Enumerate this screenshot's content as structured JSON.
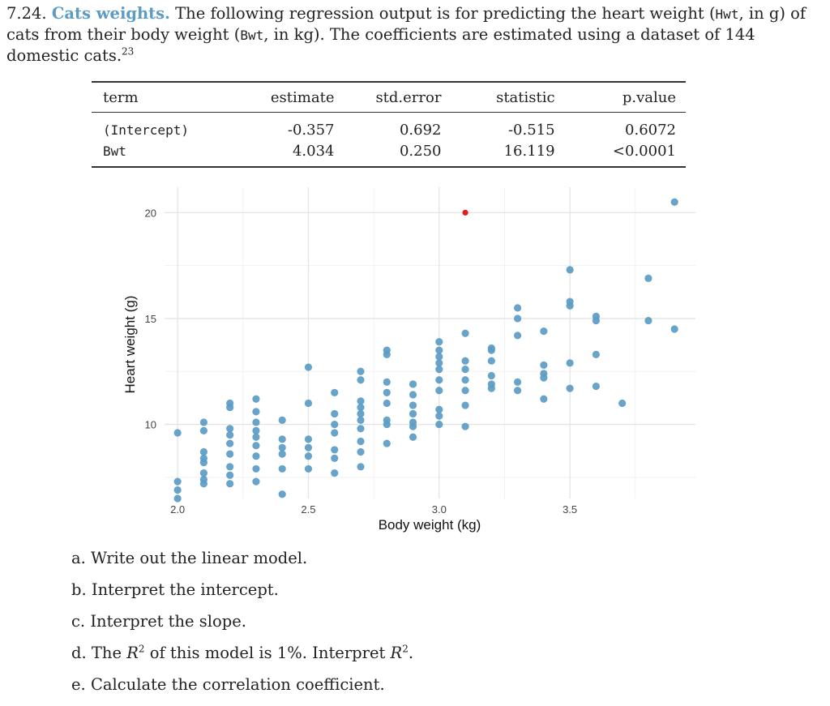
{
  "exercise": {
    "number": "7.24.",
    "title": "Cats weights.",
    "text_1": "The following regression output is for predicting the heart weight (",
    "hwt": "Hwt",
    "text_2": ", in g) of cats from their body weight (",
    "bwt": "Bwt",
    "text_3": ", in kg). The coefficients are estimated using a dataset of 144 domestic cats.",
    "footnote": "23"
  },
  "table": {
    "headers": [
      "term",
      "estimate",
      "std.error",
      "statistic",
      "p.value"
    ],
    "rows": [
      [
        "(Intercept)",
        "-0.357",
        "0.692",
        "-0.515",
        "0.6072"
      ],
      [
        "Bwt",
        "4.034",
        "0.250",
        "16.119",
        "<0.0001"
      ]
    ]
  },
  "chart_data": {
    "type": "scatter",
    "xlabel": "Body weight (kg)",
    "ylabel": "Heart weight (g)",
    "xlim": [
      1.95,
      3.98
    ],
    "ylim": [
      6.5,
      21.2
    ],
    "xticks": [
      "2.0",
      "2.5",
      "3.0",
      "3.5"
    ],
    "yticks": [
      "10",
      "15",
      "20"
    ],
    "grid": true,
    "point_color": "#5b9bc4",
    "highlight_color": "#e02020",
    "highlight": {
      "x": 3.1,
      "y": 20.0
    },
    "points": [
      [
        2.0,
        9.6
      ],
      [
        2.0,
        7.3
      ],
      [
        2.0,
        6.9
      ],
      [
        2.0,
        6.5
      ],
      [
        2.1,
        10.1
      ],
      [
        2.1,
        9.7
      ],
      [
        2.1,
        8.7
      ],
      [
        2.1,
        8.4
      ],
      [
        2.1,
        8.2
      ],
      [
        2.1,
        7.7
      ],
      [
        2.1,
        7.4
      ],
      [
        2.1,
        7.2
      ],
      [
        2.2,
        11.0
      ],
      [
        2.2,
        10.8
      ],
      [
        2.2,
        9.8
      ],
      [
        2.2,
        9.5
      ],
      [
        2.2,
        9.1
      ],
      [
        2.2,
        8.6
      ],
      [
        2.2,
        8.0
      ],
      [
        2.2,
        7.6
      ],
      [
        2.2,
        7.2
      ],
      [
        2.3,
        11.2
      ],
      [
        2.3,
        10.6
      ],
      [
        2.3,
        10.1
      ],
      [
        2.3,
        9.7
      ],
      [
        2.3,
        9.4
      ],
      [
        2.3,
        9.0
      ],
      [
        2.3,
        8.5
      ],
      [
        2.3,
        7.9
      ],
      [
        2.3,
        7.3
      ],
      [
        2.4,
        10.2
      ],
      [
        2.4,
        9.3
      ],
      [
        2.4,
        8.9
      ],
      [
        2.4,
        8.6
      ],
      [
        2.4,
        7.9
      ],
      [
        2.4,
        6.7
      ],
      [
        2.5,
        12.7
      ],
      [
        2.5,
        11.0
      ],
      [
        2.5,
        9.3
      ],
      [
        2.5,
        8.9
      ],
      [
        2.5,
        8.5
      ],
      [
        2.5,
        7.9
      ],
      [
        2.6,
        11.5
      ],
      [
        2.6,
        10.5
      ],
      [
        2.6,
        10.0
      ],
      [
        2.6,
        9.6
      ],
      [
        2.6,
        8.8
      ],
      [
        2.6,
        8.4
      ],
      [
        2.6,
        7.7
      ],
      [
        2.7,
        12.5
      ],
      [
        2.7,
        12.1
      ],
      [
        2.7,
        11.1
      ],
      [
        2.7,
        10.8
      ],
      [
        2.7,
        10.5
      ],
      [
        2.7,
        10.2
      ],
      [
        2.7,
        9.8
      ],
      [
        2.7,
        9.2
      ],
      [
        2.7,
        8.7
      ],
      [
        2.7,
        8.0
      ],
      [
        2.8,
        13.5
      ],
      [
        2.8,
        13.3
      ],
      [
        2.8,
        12.0
      ],
      [
        2.8,
        11.5
      ],
      [
        2.8,
        11.0
      ],
      [
        2.8,
        10.2
      ],
      [
        2.8,
        10.0
      ],
      [
        2.8,
        9.1
      ],
      [
        2.9,
        11.9
      ],
      [
        2.9,
        11.4
      ],
      [
        2.9,
        10.9
      ],
      [
        2.9,
        10.5
      ],
      [
        2.9,
        10.1
      ],
      [
        2.9,
        9.9
      ],
      [
        2.9,
        9.4
      ],
      [
        3.0,
        13.9
      ],
      [
        3.0,
        13.5
      ],
      [
        3.0,
        13.2
      ],
      [
        3.0,
        12.9
      ],
      [
        3.0,
        12.6
      ],
      [
        3.0,
        12.1
      ],
      [
        3.0,
        11.6
      ],
      [
        3.0,
        10.7
      ],
      [
        3.0,
        10.4
      ],
      [
        3.0,
        10.0
      ],
      [
        3.1,
        14.3
      ],
      [
        3.1,
        13.0
      ],
      [
        3.1,
        12.6
      ],
      [
        3.1,
        12.1
      ],
      [
        3.1,
        11.6
      ],
      [
        3.1,
        10.9
      ],
      [
        3.1,
        9.9
      ],
      [
        3.2,
        13.6
      ],
      [
        3.2,
        13.5
      ],
      [
        3.2,
        13.0
      ],
      [
        3.2,
        12.3
      ],
      [
        3.2,
        11.9
      ],
      [
        3.2,
        11.7
      ],
      [
        3.3,
        15.5
      ],
      [
        3.3,
        15.0
      ],
      [
        3.3,
        14.2
      ],
      [
        3.3,
        12.0
      ],
      [
        3.3,
        11.6
      ],
      [
        3.4,
        14.4
      ],
      [
        3.4,
        12.8
      ],
      [
        3.4,
        12.4
      ],
      [
        3.4,
        12.2
      ],
      [
        3.4,
        11.2
      ],
      [
        3.5,
        17.3
      ],
      [
        3.5,
        15.8
      ],
      [
        3.5,
        15.6
      ],
      [
        3.5,
        12.9
      ],
      [
        3.5,
        11.7
      ],
      [
        3.6,
        15.1
      ],
      [
        3.6,
        14.9
      ],
      [
        3.6,
        13.3
      ],
      [
        3.6,
        11.8
      ],
      [
        3.7,
        11.0
      ],
      [
        3.8,
        16.9
      ],
      [
        3.8,
        14.9
      ],
      [
        3.9,
        20.5
      ],
      [
        3.9,
        14.5
      ]
    ]
  },
  "questions": [
    {
      "letter": "a.",
      "text": "Write out the linear model."
    },
    {
      "letter": "b.",
      "text": "Interpret the intercept."
    },
    {
      "letter": "c.",
      "text": "Interpret the slope."
    },
    {
      "letter": "d.",
      "pre": "The ",
      "var": "R",
      "sup": "2",
      "mid": " of this model is 1%. Interpret ",
      "var2": "R",
      "sup2": "2",
      "post": "."
    },
    {
      "letter": "e.",
      "text": "Calculate the correlation coefficient."
    }
  ]
}
